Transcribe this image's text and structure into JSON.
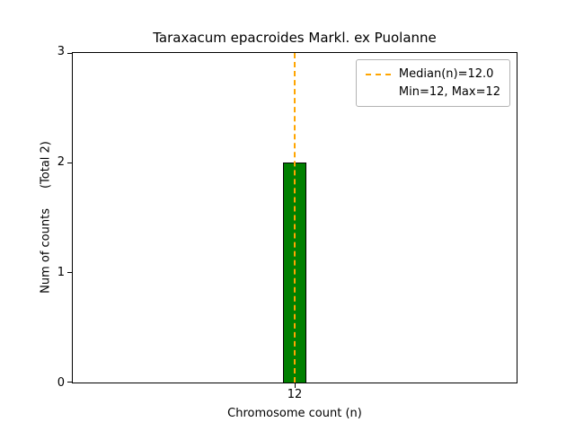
{
  "chart_data": {
    "type": "bar",
    "title": "Taraxacum epacroides Markl. ex Puolanne",
    "xlabel": "Chromosome count (n)",
    "ylabel": "Num of counts",
    "ylabel_total": "(Total 2)",
    "categories": [
      "12"
    ],
    "values": [
      2
    ],
    "total_counts": 2,
    "ylim": [
      0,
      3
    ],
    "yticks": [
      "0",
      "1",
      "2",
      "3"
    ],
    "xticks": [
      "12"
    ],
    "grid": false,
    "bar_color": "#008000",
    "bar_edge_color": "#000000",
    "median_line": {
      "x": 12,
      "value": 12.0,
      "color": "#ffa500",
      "style": "dashed"
    },
    "min": 12,
    "max": 12,
    "legend": {
      "position": "upper right",
      "lines": [
        "Median(n)=12.0",
        "Min=12, Max=12"
      ]
    }
  }
}
